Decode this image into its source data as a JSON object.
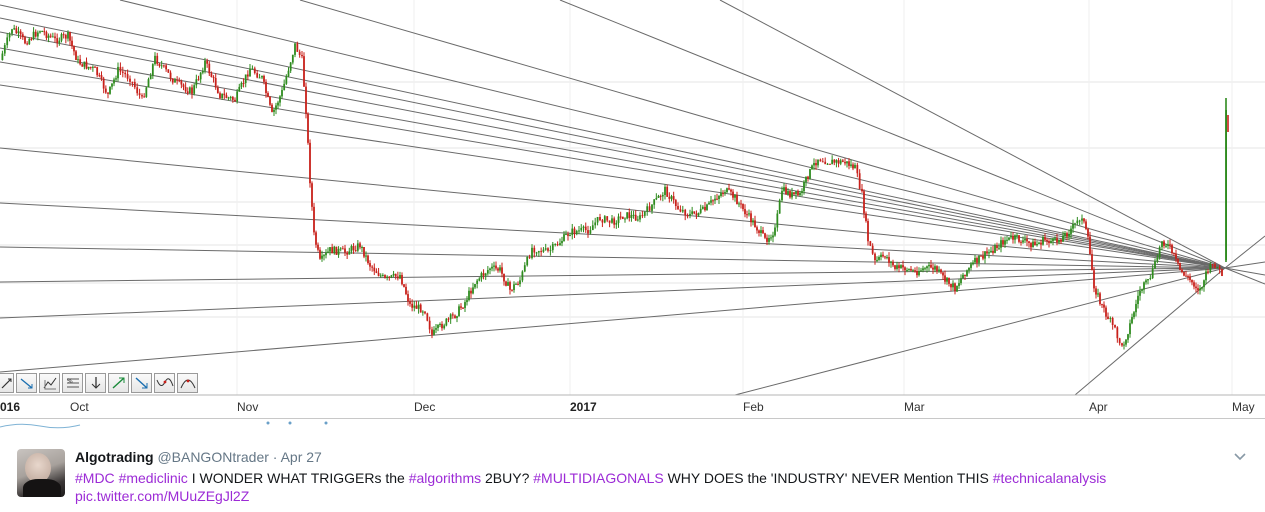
{
  "chart": {
    "x_axis": {
      "ticks": [
        {
          "label": "016",
          "bold": true,
          "date": "2016-09-01"
        },
        {
          "label": "Oct",
          "bold": false,
          "date": "2016-10-01"
        },
        {
          "label": "Nov",
          "bold": false,
          "date": "2016-11-01"
        },
        {
          "label": "Dec",
          "bold": false,
          "date": "2016-12-01"
        },
        {
          "label": "2017",
          "bold": true,
          "date": "2017-01-01"
        },
        {
          "label": "Feb",
          "bold": false,
          "date": "2017-02-01"
        },
        {
          "label": "Mar",
          "bold": false,
          "date": "2017-03-01"
        },
        {
          "label": "Apr",
          "bold": false,
          "date": "2017-04-01"
        },
        {
          "label": "May",
          "bold": false,
          "date": "2017-05-01"
        }
      ]
    },
    "candle_colors": {
      "up": "#2e8b1e",
      "down": "#c8201a"
    },
    "line_color": "#6a6a6a",
    "grid_color": "#e6e6e6",
    "tools": [
      {
        "name": "line-tool-icon"
      },
      {
        "name": "trend-down-icon"
      },
      {
        "name": "pattern-up-icon"
      },
      {
        "name": "fib-icon"
      },
      {
        "name": "arrow-down-icon"
      },
      {
        "name": "arrow-up-icon"
      },
      {
        "name": "arrow-down-right-icon"
      },
      {
        "name": "wave-icon"
      },
      {
        "name": "arc-icon"
      }
    ]
  },
  "tweet": {
    "display_name": "Algotrading",
    "handle": "@BANGONtrader",
    "separator": "·",
    "date": "Apr 27",
    "hashtag_mdc": "#MDC",
    "hashtag_mediclinic": "#mediclinic",
    "text_1": "I WONDER WHAT TRIGGERs the",
    "hashtag_algorithms": "#algorithms",
    "text_2": "2BUY?",
    "hashtag_multidiagonals": "#MULTIDIAGONALS",
    "text_3": "WHY DOES the 'INDUSTRY' NEVER Mention THIS",
    "hashtag_technicalanalysis": "#technicalanalysis",
    "pic_link": "pic.twitter.com/MUuZEgJl2Z",
    "link_color": "#9c2bd6"
  }
}
